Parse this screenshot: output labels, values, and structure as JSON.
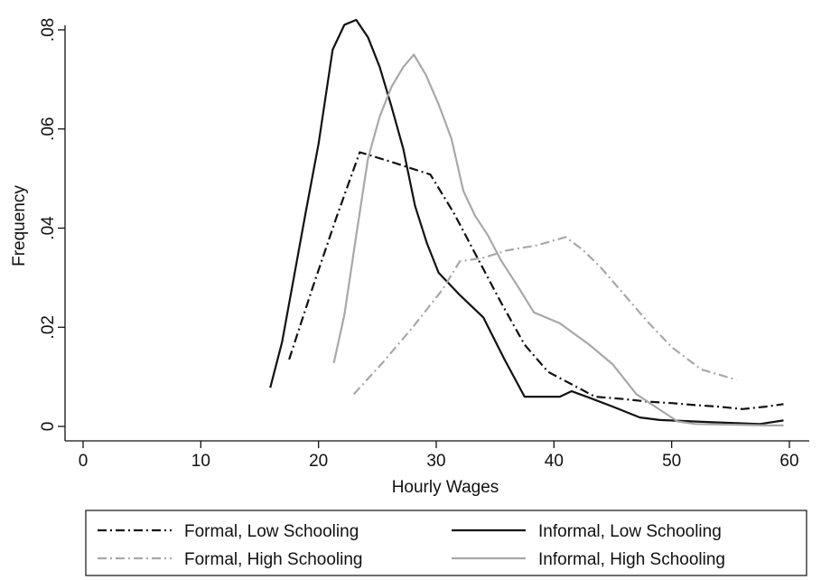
{
  "chart_data": {
    "type": "line",
    "title": "",
    "xlabel": "Hourly Wages",
    "ylabel": "Frequency",
    "xlim": [
      0,
      60
    ],
    "ylim": [
      0,
      0.08
    ],
    "x_ticks": [
      {
        "value": 0,
        "label": "0"
      },
      {
        "value": 10,
        "label": "10"
      },
      {
        "value": 20,
        "label": "20"
      },
      {
        "value": 30,
        "label": "30"
      },
      {
        "value": 40,
        "label": "40"
      },
      {
        "value": 50,
        "label": "50"
      },
      {
        "value": 60,
        "label": "60"
      }
    ],
    "y_ticks": [
      {
        "value": 0,
        "label": "0"
      },
      {
        "value": 0.02,
        "label": ".02"
      },
      {
        "value": 0.04,
        "label": ".04"
      },
      {
        "value": 0.06,
        "label": ".06"
      },
      {
        "value": 0.08,
        "label": ".08"
      }
    ],
    "grid": false,
    "legend_position": "bottom",
    "series": [
      {
        "name": "Formal, Low Schooling",
        "color": "#111111",
        "dash": "dash-dot",
        "points": [
          [
            17.5,
            0.0135
          ],
          [
            19.5,
            0.028
          ],
          [
            21.5,
            0.042
          ],
          [
            23.5,
            0.0553
          ],
          [
            26,
            0.0535
          ],
          [
            29.5,
            0.0508
          ],
          [
            31.5,
            0.043
          ],
          [
            33.5,
            0.034
          ],
          [
            35.5,
            0.025
          ],
          [
            37.5,
            0.0165
          ],
          [
            39.5,
            0.011
          ],
          [
            41.5,
            0.0085
          ],
          [
            43.5,
            0.006
          ],
          [
            46,
            0.0055
          ],
          [
            48,
            0.005
          ],
          [
            50,
            0.0047
          ],
          [
            52,
            0.0043
          ],
          [
            54,
            0.004
          ],
          [
            56,
            0.0035
          ],
          [
            58,
            0.004
          ],
          [
            59.5,
            0.0045
          ]
        ]
      },
      {
        "name": "Informal, Low Schooling",
        "color": "#111111",
        "dash": "solid",
        "points": [
          [
            15.9,
            0.0078
          ],
          [
            16.9,
            0.017
          ],
          [
            17.9,
            0.03
          ],
          [
            18.9,
            0.043
          ],
          [
            20,
            0.057
          ],
          [
            21.2,
            0.076
          ],
          [
            22.2,
            0.081
          ],
          [
            23.2,
            0.082
          ],
          [
            24.2,
            0.0785
          ],
          [
            25.2,
            0.0725
          ],
          [
            26.2,
            0.0645
          ],
          [
            27.2,
            0.056
          ],
          [
            28.2,
            0.0445
          ],
          [
            29.2,
            0.037
          ],
          [
            30.2,
            0.031
          ],
          [
            32,
            0.0265
          ],
          [
            34,
            0.022
          ],
          [
            35.8,
            0.0135
          ],
          [
            37.5,
            0.006
          ],
          [
            40.5,
            0.006
          ],
          [
            41.5,
            0.0071
          ],
          [
            43,
            0.0058
          ],
          [
            45,
            0.004
          ],
          [
            47.3,
            0.0018
          ],
          [
            49,
            0.0013
          ],
          [
            51,
            0.0011
          ],
          [
            54,
            0.0008
          ],
          [
            57.5,
            0.0005
          ],
          [
            59.5,
            0.0012
          ]
        ]
      },
      {
        "name": "Formal, High Schooling",
        "color": "#a8a8a8",
        "dash": "dash-dot",
        "points": [
          [
            23,
            0.0065
          ],
          [
            25.5,
            0.013
          ],
          [
            28,
            0.02
          ],
          [
            30.5,
            0.0275
          ],
          [
            32,
            0.0333
          ],
          [
            34,
            0.034
          ],
          [
            36,
            0.0355
          ],
          [
            38.5,
            0.0365
          ],
          [
            41,
            0.0382
          ],
          [
            42.5,
            0.0355
          ],
          [
            44,
            0.032
          ],
          [
            46,
            0.0265
          ],
          [
            48,
            0.021
          ],
          [
            50,
            0.016
          ],
          [
            52.5,
            0.0115
          ],
          [
            55.5,
            0.0094
          ]
        ]
      },
      {
        "name": "Informal, High Schooling",
        "color": "#a8a8a8",
        "dash": "solid",
        "points": [
          [
            21.3,
            0.0128
          ],
          [
            22.2,
            0.0225
          ],
          [
            23.2,
            0.0385
          ],
          [
            24.2,
            0.054
          ],
          [
            25.2,
            0.0625
          ],
          [
            26.2,
            0.0685
          ],
          [
            27.2,
            0.0725
          ],
          [
            28.1,
            0.075
          ],
          [
            29.1,
            0.071
          ],
          [
            30.2,
            0.065
          ],
          [
            31.3,
            0.058
          ],
          [
            32.3,
            0.0475
          ],
          [
            33.3,
            0.0425
          ],
          [
            34.4,
            0.0385
          ],
          [
            35.5,
            0.0335
          ],
          [
            37,
            0.028
          ],
          [
            38.3,
            0.023
          ],
          [
            40.5,
            0.0208
          ],
          [
            43,
            0.0165
          ],
          [
            45,
            0.0125
          ],
          [
            47,
            0.0065
          ],
          [
            50.5,
            0.001
          ],
          [
            52,
            0.0005
          ],
          [
            58,
            0.0002
          ],
          [
            59.5,
            0.0002
          ]
        ]
      }
    ]
  }
}
